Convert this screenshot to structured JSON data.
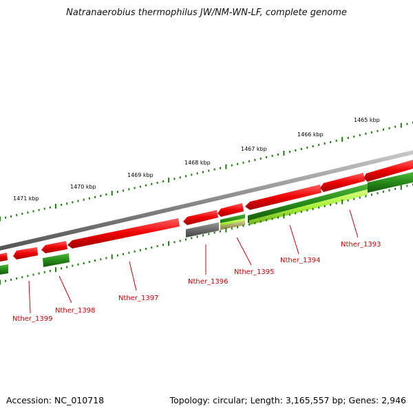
{
  "title": "Natranaerobius thermophilus JW/NM-WN-LF, complete genome",
  "footer": {
    "accession": "Accession: NC_010718",
    "summary": "Topology: circular; Length: 3,165,557 bp; Genes: 2,946"
  },
  "colors": {
    "backbone": "#8a8a8a",
    "gene_forward": "#e60000",
    "gene_reverse": "#2a8a1a",
    "gene_grey": "#6e6e6e",
    "gene_lightgreen": "#a8ee3a",
    "gene_olive": "#a8a060",
    "tick": "#1f7a10",
    "label": "#cc0000"
  },
  "kbp_labels": [
    "1465 kbp",
    "1466 kbp",
    "1467 kbp",
    "1468 kbp",
    "1469 kbp",
    "1470 kbp",
    "1471 kbp"
  ],
  "gene_labels": [
    "Nther_1393",
    "Nther_1394",
    "Nther_1395",
    "Nther_1396",
    "Nther_1397",
    "Nther_1398",
    "Nther_1399"
  ]
}
